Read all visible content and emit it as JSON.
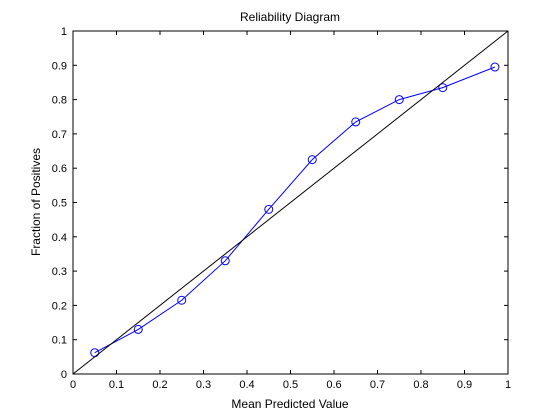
{
  "chart_data": {
    "type": "line",
    "title": "Reliability Diagram",
    "xlabel": "Mean Predicted Value",
    "ylabel": "Fraction of Positives",
    "xlim": [
      0,
      1
    ],
    "ylim": [
      0,
      1
    ],
    "xticks": [
      "0",
      "0.1",
      "0.2",
      "0.3",
      "0.4",
      "0.5",
      "0.6",
      "0.7",
      "0.8",
      "0.9",
      "1"
    ],
    "yticks": [
      "0",
      "0.1",
      "0.2",
      "0.3",
      "0.4",
      "0.5",
      "0.6",
      "0.7",
      "0.8",
      "0.9",
      "1"
    ],
    "grid": false,
    "series": [
      {
        "marker": "circle",
        "color": "#0000ff",
        "x": [
          0.05,
          0.15,
          0.25,
          0.35,
          0.45,
          0.55,
          0.65,
          0.75,
          0.85,
          0.97
        ],
        "y": [
          0.062,
          0.13,
          0.215,
          0.33,
          0.48,
          0.625,
          0.735,
          0.8,
          0.835,
          0.895
        ]
      },
      {
        "marker": "none",
        "color": "#000000",
        "x": [
          0,
          1
        ],
        "y": [
          0,
          1
        ]
      }
    ]
  }
}
